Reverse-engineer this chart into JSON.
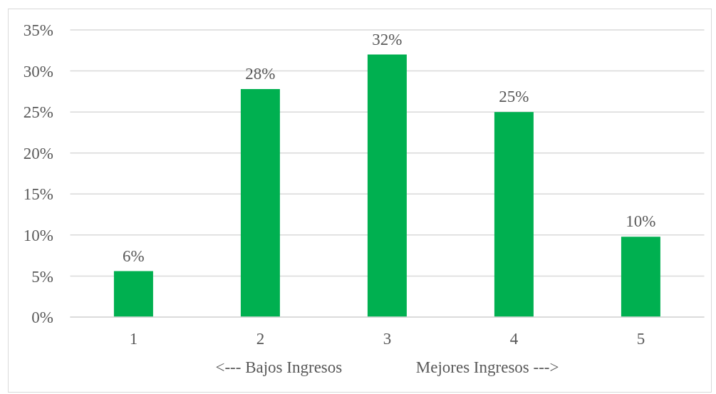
{
  "chart_data": {
    "type": "bar",
    "categories": [
      "1",
      "2",
      "3",
      "4",
      "5"
    ],
    "values": [
      5.6,
      27.8,
      32,
      25,
      9.8
    ],
    "value_labels": [
      "6%",
      "28%",
      "32%",
      "25%",
      "10%"
    ],
    "color": "#00b050",
    "xlabel": "<--- Bajos Ingresos                  Mejores Ingresos --->",
    "ylim": [
      0,
      35
    ],
    "yticks": [
      {
        "value": 0,
        "label": "0%"
      },
      {
        "value": 5,
        "label": "5%"
      },
      {
        "value": 10,
        "label": "10%"
      },
      {
        "value": 15,
        "label": "15%"
      },
      {
        "value": 20,
        "label": "20%"
      },
      {
        "value": 25,
        "label": "25%"
      },
      {
        "value": 30,
        "label": "30%"
      },
      {
        "value": 35,
        "label": "35%"
      }
    ],
    "grid": "y"
  }
}
